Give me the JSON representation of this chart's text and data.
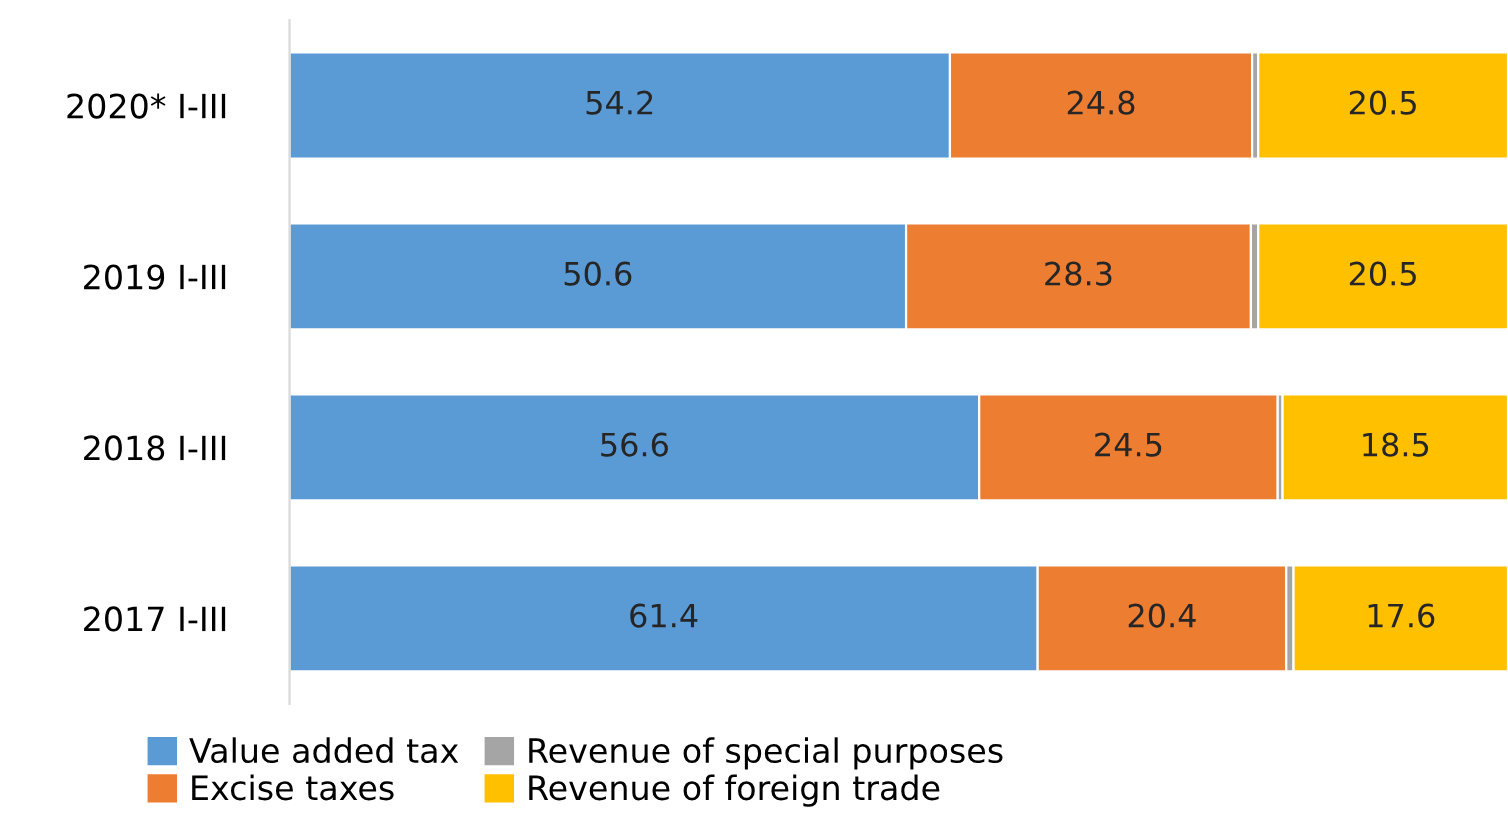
{
  "chart_data": {
    "type": "bar",
    "orientation": "horizontal",
    "stacked": true,
    "categories": [
      "2020* I-III",
      "2019 I-III",
      "2018 I-III",
      "2017 I-III"
    ],
    "series": [
      {
        "name": "Value added tax",
        "color": "#5b9bd5",
        "values": [
          54.2,
          50.6,
          56.6,
          61.4
        ],
        "value_labels": [
          "54.2",
          "50.6",
          "56.6",
          "61.4"
        ]
      },
      {
        "name": "Excise taxes",
        "color": "#ed7d31",
        "values": [
          24.8,
          28.3,
          24.5,
          20.4
        ],
        "value_labels": [
          "24.8",
          "28.3",
          "24.5",
          "20.4"
        ]
      },
      {
        "name": "Revenue of special purposes",
        "color": "#a5a5a5",
        "values": [
          0.5,
          0.6,
          0.4,
          0.6
        ],
        "value_labels": [
          null,
          null,
          null,
          null
        ]
      },
      {
        "name": "Revenue of foreign trade",
        "color": "#ffc000",
        "values": [
          20.5,
          20.5,
          18.5,
          17.6
        ],
        "value_labels": [
          "20.5",
          "20.5",
          "18.5",
          "17.6"
        ]
      }
    ],
    "tick_labels": "y",
    "legend": "bottom",
    "grid": false
  }
}
